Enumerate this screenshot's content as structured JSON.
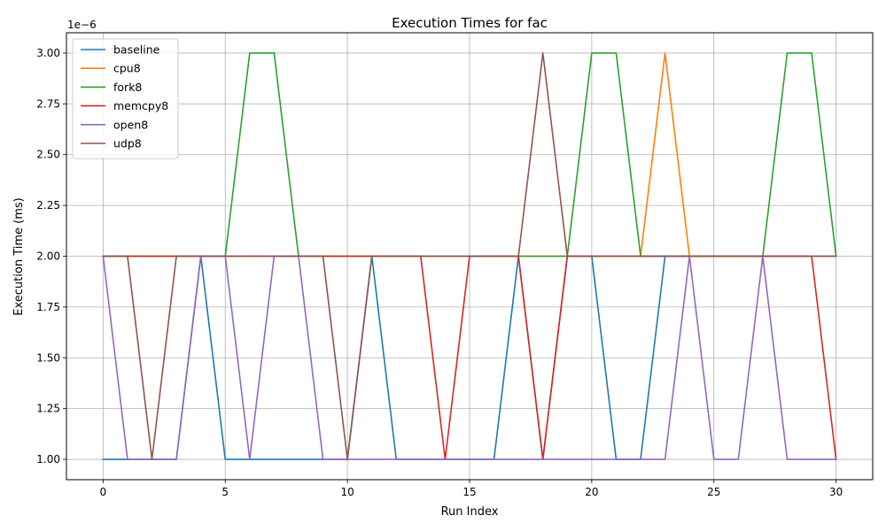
{
  "chart_data": {
    "type": "line",
    "title": "Execution Times for fac",
    "xlabel": "Run Index",
    "ylabel": "Execution Time (ms)",
    "y_offset_text": "1e−6",
    "xlim": [
      -1.5,
      31.5
    ],
    "ylim": [
      0.9,
      3.1
    ],
    "x_ticks": [
      0,
      5,
      10,
      15,
      20,
      25,
      30
    ],
    "x_tick_labels": [
      "0",
      "5",
      "10",
      "15",
      "20",
      "25",
      "30"
    ],
    "y_ticks": [
      1.0,
      1.25,
      1.5,
      1.75,
      2.0,
      2.25,
      2.5,
      2.75,
      3.0
    ],
    "y_tick_labels": [
      "1.00",
      "1.25",
      "1.50",
      "1.75",
      "2.00",
      "2.25",
      "2.50",
      "2.75",
      "3.00"
    ],
    "grid": true,
    "legend_position": "top-left",
    "x": [
      0,
      1,
      2,
      3,
      4,
      5,
      6,
      7,
      8,
      9,
      10,
      11,
      12,
      13,
      14,
      15,
      16,
      17,
      18,
      19,
      20,
      21,
      22,
      23,
      24,
      25,
      26,
      27,
      28,
      29,
      30
    ],
    "series": [
      {
        "name": "baseline",
        "color": "#1f77b4",
        "values": [
          1,
          1,
          1,
          1,
          2,
          1,
          1,
          1,
          1,
          1,
          1,
          2,
          1,
          1,
          1,
          1,
          1,
          2,
          1,
          2,
          2,
          1,
          1,
          2,
          2,
          2,
          2,
          2,
          2,
          2,
          2
        ]
      },
      {
        "name": "cpu8",
        "color": "#ff7f0e",
        "values": [
          2,
          2,
          2,
          2,
          2,
          2,
          2,
          2,
          2,
          2,
          2,
          2,
          2,
          2,
          2,
          2,
          2,
          2,
          2,
          2,
          2,
          2,
          2,
          3,
          2,
          2,
          2,
          2,
          2,
          2,
          2
        ]
      },
      {
        "name": "fork8",
        "color": "#2ca02c",
        "values": [
          2,
          2,
          2,
          2,
          2,
          2,
          3,
          3,
          2,
          2,
          2,
          2,
          2,
          2,
          2,
          2,
          2,
          2,
          2,
          2,
          3,
          3,
          2,
          2,
          2,
          2,
          2,
          2,
          3,
          3,
          2
        ]
      },
      {
        "name": "memcpy8",
        "color": "#d62728",
        "values": [
          2,
          2,
          2,
          2,
          2,
          2,
          2,
          2,
          2,
          2,
          2,
          2,
          2,
          2,
          1,
          2,
          2,
          2,
          1,
          2,
          2,
          2,
          2,
          2,
          2,
          2,
          2,
          2,
          2,
          2,
          1
        ]
      },
      {
        "name": "open8",
        "color": "#9467bd",
        "values": [
          2,
          1,
          1,
          1,
          2,
          2,
          1,
          2,
          2,
          1,
          1,
          1,
          1,
          1,
          1,
          1,
          1,
          1,
          1,
          1,
          1,
          1,
          1,
          1,
          2,
          1,
          1,
          2,
          1,
          1,
          1
        ]
      },
      {
        "name": "udp8",
        "color": "#8c564b",
        "values": [
          2,
          2,
          1,
          2,
          2,
          2,
          2,
          2,
          2,
          2,
          1,
          2,
          2,
          2,
          2,
          2,
          2,
          2,
          3,
          2,
          2,
          2,
          2,
          2,
          2,
          2,
          2,
          2,
          2,
          2,
          2
        ]
      }
    ]
  }
}
